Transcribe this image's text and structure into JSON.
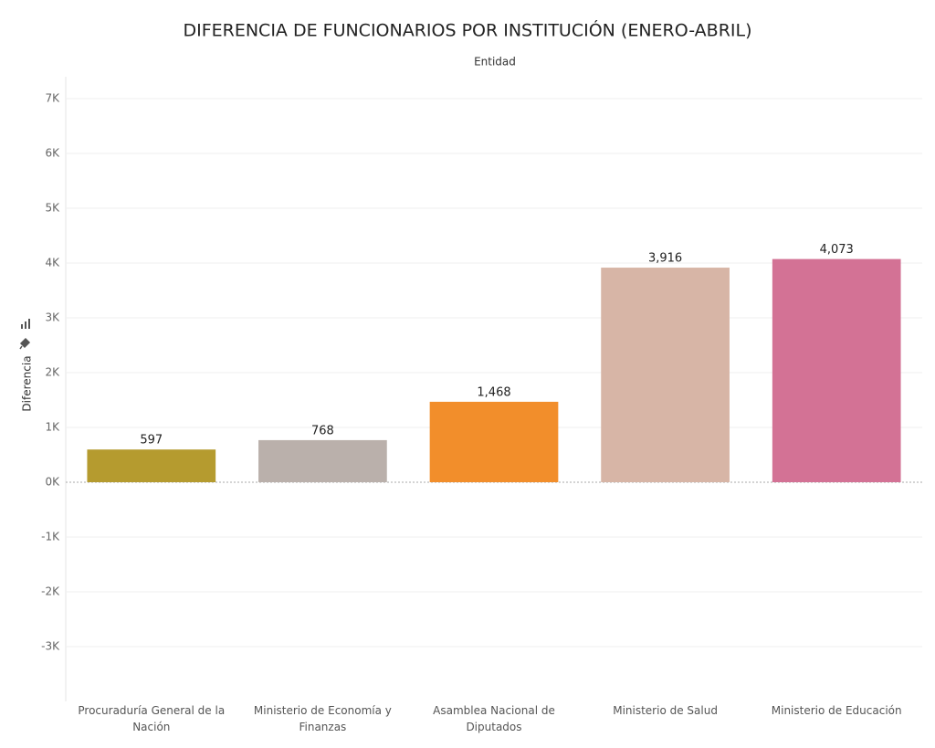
{
  "chart_data": {
    "type": "bar",
    "title": "DIFERENCIA DE FUNCIONARIOS POR INSTITUCIÓN (ENERO-ABRIL)",
    "x_label": "Entidad",
    "y_label": "Diferencia",
    "categories": [
      "Procuraduría General de la Nación",
      "Ministerio de Economía y Finanzas",
      "Asamblea Nacional de Diputados",
      "Ministerio de Salud",
      "Ministerio de Educación"
    ],
    "values": [
      597,
      768,
      1468,
      3916,
      4073
    ],
    "value_labels": [
      "597",
      "768",
      "1,468",
      "3,916",
      "4,073"
    ],
    "colors": [
      "#b59b2f",
      "#bab0ab",
      "#f28e2b",
      "#d7b5a6",
      "#d37295"
    ],
    "ylim": [
      -4000,
      7400
    ],
    "yticks": [
      {
        "value": -3000,
        "label": "-3K"
      },
      {
        "value": -2000,
        "label": "-2K"
      },
      {
        "value": -1000,
        "label": "-1K"
      },
      {
        "value": 0,
        "label": "0K"
      },
      {
        "value": 1000,
        "label": "1K"
      },
      {
        "value": 2000,
        "label": "2K"
      },
      {
        "value": 3000,
        "label": "3K"
      },
      {
        "value": 4000,
        "label": "4K"
      },
      {
        "value": 5000,
        "label": "5K"
      },
      {
        "value": 6000,
        "label": "6K"
      },
      {
        "value": 7000,
        "label": "7K"
      }
    ],
    "grid": true
  }
}
